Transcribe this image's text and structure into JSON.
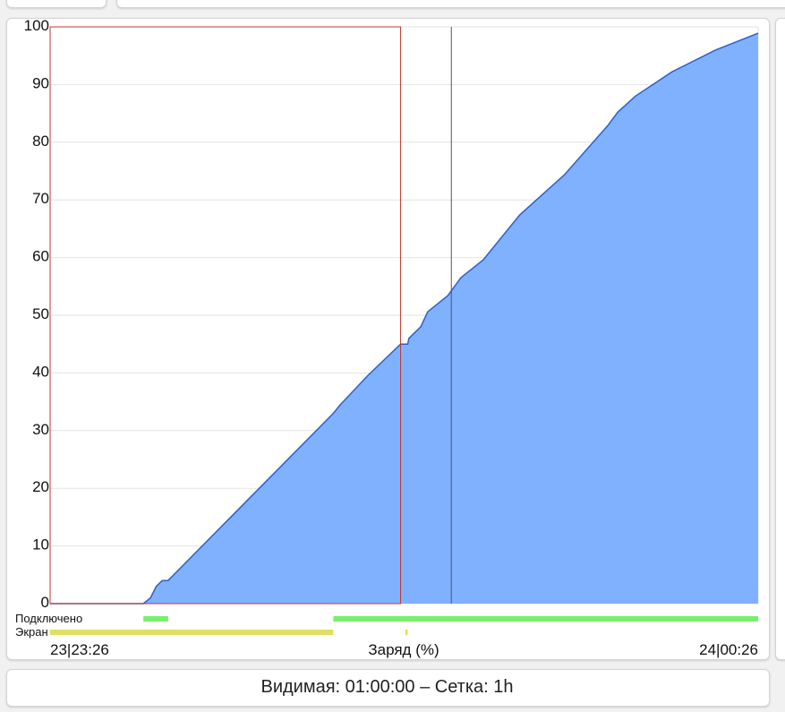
{
  "chart_data": {
    "type": "area",
    "xlabel": "Заряд (%)",
    "x_start_label": "23|23:26",
    "x_end_label": "24|00:26",
    "x_range": [
      "23:26:00",
      "00:26:00"
    ],
    "ylim": [
      0,
      100
    ],
    "y_ticks": [
      0,
      10,
      20,
      30,
      40,
      50,
      60,
      70,
      80,
      90,
      100
    ],
    "grid": true,
    "fill_color": "#80b1ff",
    "line_color": "#2f5fc4",
    "points": [
      [
        "23:26:00",
        0
      ],
      [
        "23:33:54",
        0
      ],
      [
        "23:34:30",
        1
      ],
      [
        "23:35:00",
        3
      ],
      [
        "23:35:30",
        4
      ],
      [
        "23:36:00",
        4
      ],
      [
        "23:50:00",
        33
      ],
      [
        "23:50:36",
        34.5
      ],
      [
        "23:52:54",
        39.5
      ],
      [
        "23:55:42",
        45
      ],
      [
        "23:56:18",
        45
      ],
      [
        "23:56:24",
        46
      ],
      [
        "23:57:24",
        48
      ],
      [
        "23:58:00",
        50.6
      ],
      [
        "23:59:42",
        53.4
      ],
      [
        "00:00:48",
        56.5
      ],
      [
        "00:02:42",
        59.6
      ],
      [
        "00:05:48",
        67.4
      ],
      [
        "00:09:36",
        74.4
      ],
      [
        "00:13:18",
        83
      ],
      [
        "00:14:06",
        85.2
      ],
      [
        "00:15:36",
        88
      ],
      [
        "00:18:42",
        92.2
      ],
      [
        "00:22:24",
        96
      ],
      [
        "00:26:00",
        98.9
      ]
    ],
    "highlight_range": {
      "start": "23:26:00",
      "end": "23:55:42",
      "color": "#c0392b"
    },
    "day_marker": "00:00:00",
    "tracks": [
      {
        "label": "Подключено",
        "color": "#77f06e",
        "ranges": [
          [
            "23:33:54",
            "23:36:00"
          ],
          [
            "23:50:00",
            "00:26:00"
          ]
        ]
      },
      {
        "label": "Экран",
        "color": "#e0df62",
        "ranges": [
          [
            "23:26:00",
            "23:50:00"
          ],
          [
            "23:56:06",
            "23:56:18"
          ]
        ]
      }
    ]
  },
  "footer": {
    "text": "Видимая: 01:00:00 – Сетка: 1h"
  }
}
